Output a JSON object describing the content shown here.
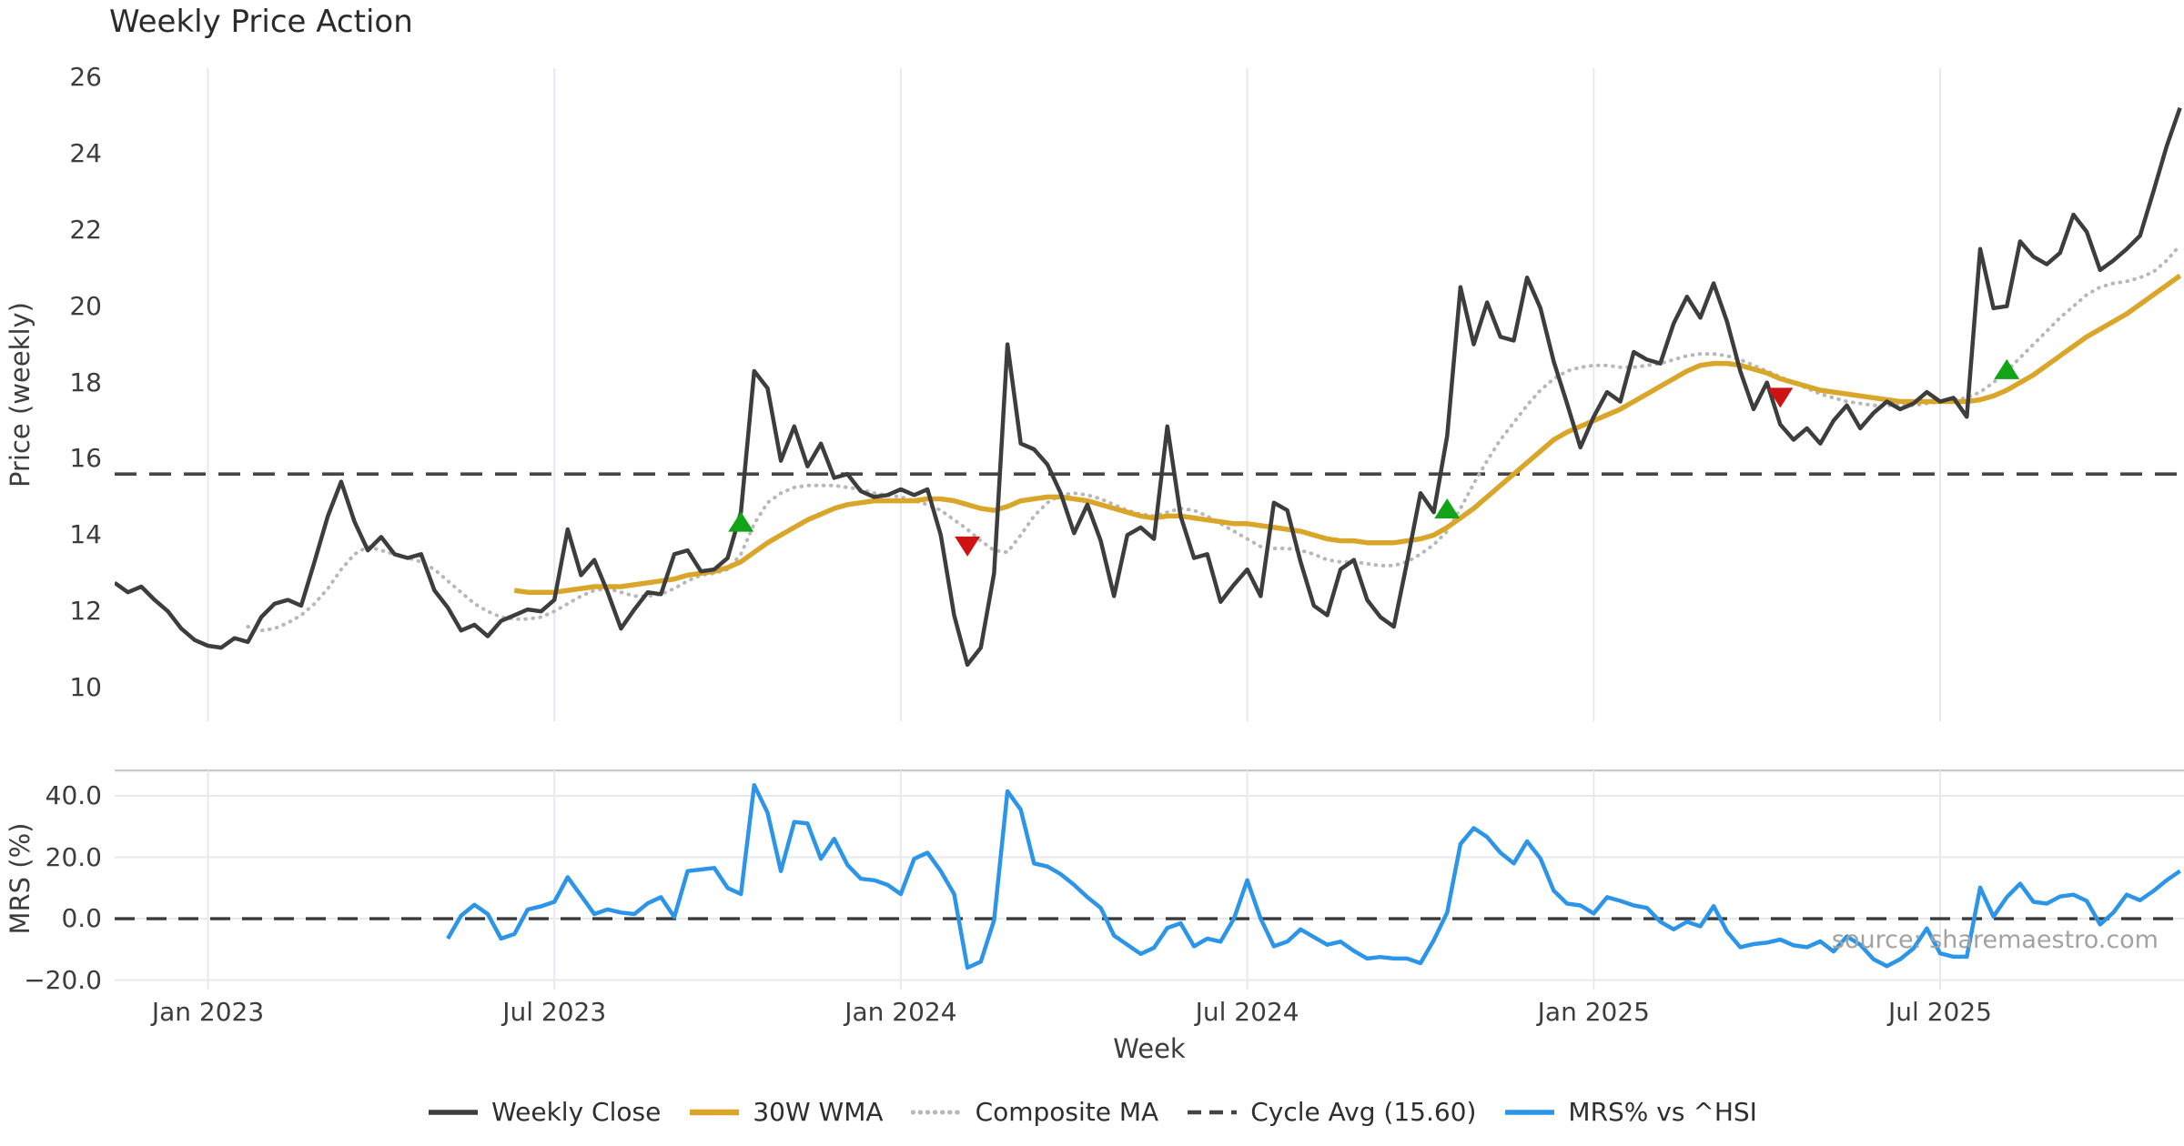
{
  "title": "Weekly Price Action",
  "watermark": "source: sharemaestro.com",
  "xlabel": "Week",
  "top_panel": {
    "ylabel": "Price (weekly)"
  },
  "bottom_panel": {
    "ylabel": "MRS (%)"
  },
  "legend": [
    {
      "label": "Weekly Close",
      "color": "#3d3d3d",
      "style": "solid",
      "width": 4.5
    },
    {
      "label": "30W WMA",
      "color": "#d9a62a",
      "style": "solid",
      "width": 5.5
    },
    {
      "label": "Composite MA",
      "color": "#b8b8b8",
      "style": "dotted",
      "width": 4
    },
    {
      "label": "Cycle Avg (15.60)",
      "color": "#454545",
      "style": "dashed",
      "width": 3.6
    },
    {
      "label": "MRS% vs ^HSI",
      "color": "#2c95e8",
      "style": "solid",
      "width": 4.5
    }
  ],
  "colors": {
    "weekly_close": "#3d3d3d",
    "wma_30w": "#d9a62a",
    "composite_ma": "#b8b8b8",
    "cycle_avg": "#454545",
    "mrs": "#2c95e8",
    "buy_marker": "#12a317",
    "sell_marker": "#cf1212",
    "gridline": "#e8e8f0",
    "spine": "#c8c8cc",
    "text": "#3d3d3d"
  },
  "chart_data": [
    {
      "type": "line",
      "panel": "price",
      "title": "Weekly Price Action",
      "ylabel": "Price (weekly)",
      "xlabel": "Week",
      "x_unit": "week_index",
      "xlim": [
        0,
        155.3
      ],
      "ylim": [
        9.12,
        26.24
      ],
      "yticks": [
        26,
        24,
        22,
        20,
        18,
        16,
        14,
        12,
        10
      ],
      "xticks": [
        {
          "index": 7,
          "label": "Jan 2023"
        },
        {
          "index": 33,
          "label": "Jul 2023"
        },
        {
          "index": 59,
          "label": "Jan 2024"
        },
        {
          "index": 85,
          "label": "Jul 2024"
        },
        {
          "index": 111,
          "label": "Jan 2025"
        },
        {
          "index": 137,
          "label": "Jul 2025"
        }
      ],
      "grid": "vertical",
      "legend_position": "bottom-center",
      "cycle_avg": 15.6,
      "series": [
        {
          "name": "Weekly Close",
          "values": [
            12.75,
            12.5,
            12.65,
            12.3,
            12.0,
            11.55,
            11.25,
            11.1,
            11.05,
            11.3,
            11.2,
            11.85,
            12.2,
            12.3,
            12.15,
            13.3,
            14.5,
            15.4,
            14.35,
            13.6,
            13.95,
            13.5,
            13.4,
            13.5,
            12.55,
            12.1,
            11.5,
            11.65,
            11.35,
            11.75,
            11.9,
            12.05,
            12.0,
            12.3,
            14.15,
            12.95,
            13.35,
            12.5,
            11.55,
            12.05,
            12.5,
            12.45,
            13.5,
            13.6,
            13.05,
            13.1,
            13.4,
            14.6,
            18.3,
            17.85,
            15.95,
            16.85,
            15.8,
            16.4,
            15.5,
            15.6,
            15.15,
            15.0,
            15.05,
            15.2,
            15.05,
            15.2,
            14.0,
            11.9,
            10.6,
            11.05,
            13.0,
            19.0,
            16.4,
            16.25,
            15.85,
            15.1,
            14.05,
            14.8,
            13.85,
            12.4,
            14.0,
            14.2,
            13.9,
            16.85,
            14.5,
            13.4,
            13.5,
            12.25,
            12.7,
            13.1,
            12.4,
            14.85,
            14.65,
            13.3,
            12.15,
            11.9,
            13.1,
            13.35,
            12.3,
            11.85,
            11.6,
            13.3,
            15.1,
            14.6,
            16.6,
            20.5,
            19.0,
            20.1,
            19.2,
            19.1,
            20.75,
            19.95,
            18.55,
            17.45,
            16.3,
            17.1,
            17.75,
            17.5,
            18.8,
            18.6,
            18.5,
            19.55,
            20.25,
            19.7,
            20.6,
            19.6,
            18.3,
            17.3,
            18.0,
            16.9,
            16.5,
            16.8,
            16.4,
            17.0,
            17.4,
            16.8,
            17.2,
            17.5,
            17.3,
            17.45,
            17.75,
            17.5,
            17.6,
            17.1,
            21.5,
            19.95,
            20.0,
            21.7,
            21.3,
            21.1,
            21.4,
            22.4,
            21.95,
            20.95,
            21.2,
            21.5,
            21.85,
            23.0,
            24.2,
            25.2
          ]
        },
        {
          "name": "30W WMA",
          "values": [
            null,
            null,
            null,
            null,
            null,
            null,
            null,
            null,
            null,
            null,
            null,
            null,
            null,
            null,
            null,
            null,
            null,
            null,
            null,
            null,
            null,
            null,
            null,
            null,
            null,
            null,
            null,
            null,
            null,
            null,
            12.55,
            12.5,
            12.5,
            12.5,
            12.55,
            12.6,
            12.65,
            12.65,
            12.65,
            12.7,
            12.75,
            12.8,
            12.85,
            12.95,
            13.0,
            13.05,
            13.15,
            13.3,
            13.55,
            13.8,
            14.0,
            14.2,
            14.4,
            14.55,
            14.7,
            14.8,
            14.85,
            14.9,
            14.9,
            14.9,
            14.9,
            14.95,
            14.95,
            14.9,
            14.8,
            14.7,
            14.65,
            14.75,
            14.9,
            14.95,
            15.0,
            15.0,
            14.95,
            14.9,
            14.8,
            14.7,
            14.6,
            14.5,
            14.45,
            14.5,
            14.5,
            14.45,
            14.4,
            14.35,
            14.3,
            14.3,
            14.25,
            14.2,
            14.15,
            14.1,
            14.0,
            13.9,
            13.85,
            13.85,
            13.8,
            13.8,
            13.8,
            13.85,
            13.9,
            14.0,
            14.2,
            14.45,
            14.7,
            15.0,
            15.3,
            15.6,
            15.9,
            16.2,
            16.5,
            16.7,
            16.85,
            17.0,
            17.15,
            17.3,
            17.5,
            17.7,
            17.9,
            18.1,
            18.3,
            18.45,
            18.5,
            18.5,
            18.45,
            18.35,
            18.25,
            18.1,
            18.0,
            17.9,
            17.8,
            17.75,
            17.7,
            17.65,
            17.6,
            17.55,
            17.5,
            17.5,
            17.5,
            17.5,
            17.5,
            17.5,
            17.55,
            17.65,
            17.8,
            18.0,
            18.2,
            18.45,
            18.7,
            18.95,
            19.2,
            19.4,
            19.6,
            19.8,
            20.05,
            20.3,
            20.55,
            20.8
          ]
        },
        {
          "name": "Composite MA",
          "values": [
            null,
            null,
            null,
            null,
            null,
            null,
            null,
            null,
            null,
            null,
            11.6,
            11.5,
            11.55,
            11.7,
            11.9,
            12.2,
            12.6,
            13.1,
            13.5,
            13.7,
            13.6,
            13.5,
            13.4,
            13.3,
            13.1,
            12.8,
            12.5,
            12.2,
            12.0,
            11.85,
            11.8,
            11.8,
            11.85,
            12.0,
            12.2,
            12.4,
            12.55,
            12.6,
            12.5,
            12.4,
            12.4,
            12.45,
            12.6,
            12.8,
            12.95,
            13.0,
            13.1,
            13.5,
            14.3,
            14.85,
            15.1,
            15.25,
            15.3,
            15.3,
            15.3,
            15.25,
            15.2,
            15.1,
            15.05,
            15.0,
            14.9,
            14.8,
            14.65,
            14.4,
            14.15,
            13.85,
            13.6,
            13.55,
            14.0,
            14.5,
            14.85,
            15.05,
            15.1,
            15.05,
            14.95,
            14.8,
            14.65,
            14.55,
            14.5,
            14.6,
            14.7,
            14.65,
            14.5,
            14.3,
            14.1,
            13.9,
            13.7,
            13.65,
            13.65,
            13.6,
            13.5,
            13.35,
            13.3,
            13.3,
            13.25,
            13.2,
            13.2,
            13.3,
            13.5,
            13.75,
            14.1,
            14.7,
            15.35,
            15.95,
            16.5,
            16.95,
            17.4,
            17.8,
            18.1,
            18.3,
            18.4,
            18.45,
            18.45,
            18.4,
            18.4,
            18.45,
            18.5,
            18.6,
            18.7,
            18.75,
            18.75,
            18.7,
            18.6,
            18.45,
            18.3,
            18.15,
            18.0,
            17.85,
            17.7,
            17.6,
            17.5,
            17.45,
            17.4,
            17.4,
            17.4,
            17.4,
            17.45,
            17.5,
            17.55,
            17.6,
            17.75,
            18.0,
            18.3,
            18.65,
            19.0,
            19.35,
            19.7,
            20.0,
            20.3,
            20.5,
            20.6,
            20.65,
            20.75,
            20.9,
            21.2,
            21.6
          ]
        }
      ],
      "markers": {
        "buy": [
          {
            "week": 47,
            "price": 14.35
          },
          {
            "week": 100,
            "price": 14.7
          },
          {
            "week": 142,
            "price": 18.35
          }
        ],
        "sell": [
          {
            "week": 64,
            "price": 13.7
          },
          {
            "week": 125,
            "price": 17.6
          }
        ]
      }
    },
    {
      "type": "line",
      "panel": "mrs",
      "ylabel": "MRS (%)",
      "x_unit": "week_index",
      "xlim": [
        0,
        155.3
      ],
      "ylim": [
        -23.1,
        48.6
      ],
      "yticks": [
        {
          "value": 40,
          "label": "40.0"
        },
        {
          "value": 20,
          "label": "20.0"
        },
        {
          "value": 0,
          "label": "0.0"
        },
        {
          "value": -20,
          "label": "−20.0"
        }
      ],
      "grid": "both",
      "zero_line_dashed": true,
      "series": [
        {
          "name": "MRS% vs ^HSI",
          "values": [
            null,
            null,
            null,
            null,
            null,
            null,
            null,
            null,
            null,
            null,
            null,
            null,
            null,
            null,
            null,
            null,
            null,
            null,
            null,
            null,
            null,
            null,
            null,
            null,
            null,
            -6.5,
            1.0,
            4.5,
            1.5,
            -6.5,
            -5.0,
            3.0,
            4.0,
            5.5,
            13.5,
            7.5,
            1.5,
            3.0,
            2.0,
            1.5,
            5.0,
            7.0,
            0.5,
            15.5,
            16.0,
            16.5,
            10.0,
            8.0,
            43.5,
            34.5,
            15.5,
            31.5,
            31.0,
            19.5,
            26.0,
            17.5,
            13.0,
            12.5,
            11.0,
            8.0,
            19.5,
            21.5,
            15.5,
            8.0,
            -16.0,
            -14.0,
            -0.5,
            41.5,
            35.5,
            18.0,
            17.0,
            14.5,
            11.0,
            7.0,
            3.5,
            -5.5,
            -8.5,
            -11.5,
            -9.5,
            -3.0,
            -1.5,
            -9.0,
            -6.5,
            -7.5,
            0.0,
            12.5,
            0.0,
            -9.0,
            -7.5,
            -3.5,
            -6.0,
            -8.5,
            -7.5,
            -10.5,
            -13.0,
            -12.5,
            -13.0,
            -13.0,
            -14.5,
            -7.0,
            2.0,
            24.3,
            29.5,
            26.6,
            21.5,
            18.0,
            25.2,
            19.6,
            9.1,
            4.9,
            4.3,
            1.7,
            7.0,
            5.8,
            4.3,
            3.5,
            -1.0,
            -3.5,
            -1.0,
            -2.5,
            4.1,
            -4.2,
            -9.3,
            -8.3,
            -7.8,
            -6.8,
            -8.7,
            -9.3,
            -7.4,
            -10.7,
            -5.8,
            -8.5,
            -13.2,
            -15.5,
            -13.2,
            -9.7,
            -3.2,
            -11.3,
            -12.4,
            -12.4,
            10.1,
            0.7,
            7.0,
            11.4,
            5.5,
            4.9,
            7.2,
            7.8,
            5.8,
            -1.9,
            2.0,
            7.8,
            6.0,
            9.0,
            12.5,
            15.5
          ]
        }
      ]
    }
  ]
}
